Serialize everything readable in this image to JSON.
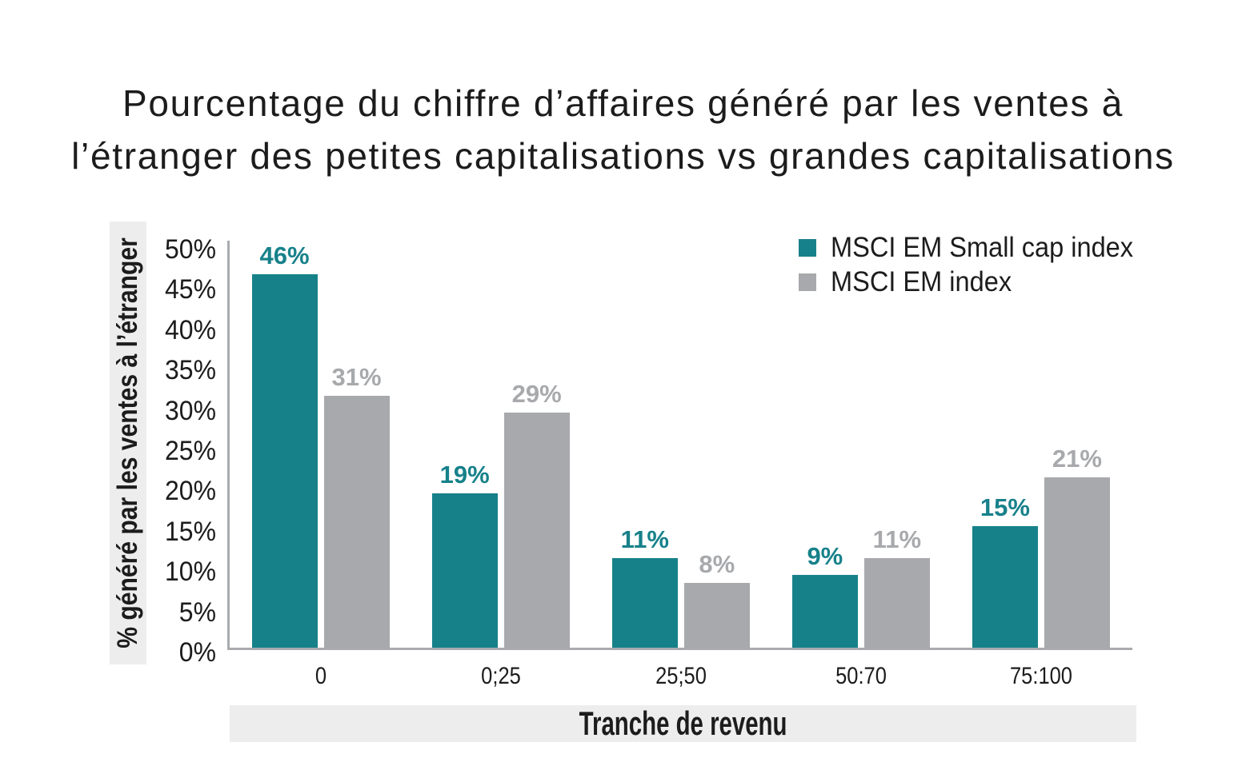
{
  "title_lines": [
    "Pourcentage du chiffre d’affaires généré par les ventes à",
    "l’étranger des petites capitalisations vs grandes capitalisations"
  ],
  "chart_data": {
    "type": "bar",
    "categories": [
      "0",
      "0;25",
      "25;50",
      "50:70",
      "75:100"
    ],
    "series": [
      {
        "name": "MSCI EM Small cap index",
        "color": "#17818a",
        "values": [
          46,
          19,
          11,
          9,
          15
        ]
      },
      {
        "name": "MSCI EM index",
        "color": "#a7a9ac",
        "values": [
          31,
          29,
          8,
          11,
          21
        ]
      }
    ],
    "value_suffix": "%",
    "xlabel": "Tranche de revenu",
    "ylabel": "% généré par les ventes à l’étranger",
    "ylim": [
      0,
      50
    ],
    "ytick_step": 5,
    "ytick_suffix": "%",
    "grid": false,
    "legend_position": "top-right"
  },
  "colors": {
    "strip_background": "#ededee",
    "axis_line": "#a9abae",
    "text": "#1c1c1c"
  }
}
